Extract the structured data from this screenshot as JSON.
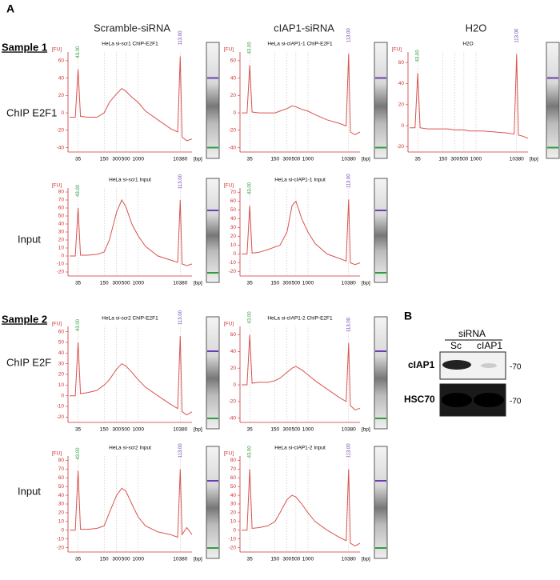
{
  "figure": {
    "panel_a": "A",
    "panel_b": "B",
    "column_headers": [
      "Scramble-siRNA",
      "cIAP1-siRNA",
      "H2O"
    ],
    "row_labels": [
      "Sample 1",
      "ChIP E2F1",
      "Input",
      "Sample 2",
      "ChIP E2F",
      "Input"
    ],
    "western": {
      "group": "siRNA",
      "lanes": [
        "Sc",
        "cIAP1"
      ],
      "proteins": [
        "cIAP1",
        "HSC70"
      ],
      "markers": [
        "-70",
        "-70"
      ]
    }
  },
  "chart_data": [
    {
      "type": "line",
      "title": "HeLa si-scr1 ChIP-E2F1",
      "ylabel": "[FU]",
      "xlabel": "[bp]",
      "color": "#d9534f",
      "xlog": true,
      "grid": true,
      "x": [
        22,
        30,
        35,
        40,
        60,
        100,
        150,
        200,
        300,
        400,
        500,
        700,
        1000,
        1500,
        3000,
        6000,
        9000,
        10380,
        11500,
        15000,
        20000
      ],
      "values": [
        -5,
        -5,
        50,
        -4,
        -5,
        -5,
        0,
        12,
        22,
        28,
        25,
        18,
        12,
        2,
        -8,
        -18,
        -22,
        65,
        -28,
        -32,
        -30
      ],
      "xlim": [
        20,
        20000
      ],
      "xticks": [
        35,
        150,
        300,
        500,
        1000,
        10380
      ],
      "ylim": [
        -45,
        70
      ],
      "yticks": [
        -40,
        -20,
        0,
        20,
        40,
        60
      ],
      "annotations": [
        {
          "x": 35,
          "text": "43.00",
          "color": "#2e9e3a"
        },
        {
          "x": 10380,
          "text": "113.00",
          "color": "#6a3fb5"
        }
      ]
    },
    {
      "type": "line",
      "title": "HeLa si-cIAP1-1 ChIP-E2F1",
      "ylabel": "[FU]",
      "xlabel": "[bp]",
      "color": "#d9534f",
      "xlog": true,
      "grid": true,
      "x": [
        22,
        30,
        35,
        40,
        60,
        100,
        150,
        200,
        300,
        400,
        500,
        700,
        1000,
        1500,
        3000,
        6000,
        9000,
        10380,
        11500,
        15000,
        20000
      ],
      "values": [
        0,
        0,
        55,
        1,
        0,
        0,
        0,
        2,
        5,
        8,
        7,
        4,
        2,
        -2,
        -8,
        -12,
        -15,
        68,
        -22,
        -25,
        -22
      ],
      "xlim": [
        20,
        20000
      ],
      "xticks": [
        35,
        150,
        300,
        500,
        1000,
        10380
      ],
      "ylim": [
        -45,
        70
      ],
      "yticks": [
        -40,
        -20,
        0,
        20,
        40,
        60
      ],
      "annotations": [
        {
          "x": 35,
          "text": "43.00",
          "color": "#2e9e3a"
        },
        {
          "x": 10380,
          "text": "113.00",
          "color": "#6a3fb5"
        }
      ]
    },
    {
      "type": "line",
      "title": "H2O",
      "ylabel": "[FU]",
      "xlabel": "[bp]",
      "color": "#d9534f",
      "xlog": true,
      "grid": true,
      "x": [
        22,
        30,
        35,
        40,
        60,
        100,
        150,
        200,
        300,
        400,
        500,
        700,
        1000,
        1500,
        3000,
        6000,
        9000,
        10380,
        11500,
        15000,
        20000
      ],
      "values": [
        -2,
        -2,
        50,
        -2,
        -3,
        -3,
        -3,
        -3,
        -4,
        -4,
        -4,
        -5,
        -5,
        -5,
        -6,
        -7,
        -8,
        68,
        -9,
        -10,
        -12
      ],
      "xlim": [
        20,
        20000
      ],
      "xticks": [
        35,
        150,
        300,
        500,
        1000,
        10380
      ],
      "ylim": [
        -25,
        70
      ],
      "yticks": [
        -20,
        0,
        20,
        40,
        60
      ],
      "annotations": [
        {
          "x": 35,
          "text": "43.00",
          "color": "#2e9e3a"
        },
        {
          "x": 10380,
          "text": "113.00",
          "color": "#6a3fb5"
        }
      ]
    },
    {
      "type": "line",
      "title": "HeLa si-scr1 Input",
      "ylabel": "[FU]",
      "xlabel": "[bp]",
      "color": "#d9534f",
      "xlog": true,
      "grid": true,
      "x": [
        22,
        30,
        35,
        40,
        60,
        100,
        150,
        200,
        300,
        400,
        500,
        700,
        1000,
        1500,
        3000,
        6000,
        9000,
        10380,
        11500,
        15000,
        20000
      ],
      "values": [
        0,
        0,
        60,
        1,
        1,
        2,
        5,
        20,
        55,
        70,
        62,
        40,
        25,
        12,
        0,
        -5,
        -8,
        70,
        -10,
        -12,
        -10
      ],
      "xlim": [
        20,
        20000
      ],
      "xticks": [
        35,
        150,
        300,
        500,
        1000,
        10380
      ],
      "ylim": [
        -25,
        85
      ],
      "yticks": [
        -20,
        -10,
        0,
        10,
        20,
        30,
        40,
        50,
        60,
        70,
        80
      ],
      "annotations": [
        {
          "x": 35,
          "text": "43.00",
          "color": "#2e9e3a"
        },
        {
          "x": 10380,
          "text": "113.00",
          "color": "#6a3fb5"
        }
      ]
    },
    {
      "type": "line",
      "title": "HeLa si-cIAP1-1 Input",
      "ylabel": "[FU]",
      "xlabel": "[bp]",
      "color": "#d9534f",
      "xlog": true,
      "grid": true,
      "x": [
        22,
        30,
        35,
        40,
        60,
        100,
        150,
        200,
        300,
        400,
        500,
        700,
        1000,
        1500,
        3000,
        6000,
        9000,
        10380,
        11500,
        15000,
        20000
      ],
      "values": [
        0,
        0,
        55,
        1,
        2,
        5,
        8,
        10,
        25,
        55,
        60,
        40,
        25,
        12,
        0,
        -5,
        -8,
        62,
        -10,
        -12,
        -10
      ],
      "xlim": [
        20,
        20000
      ],
      "xticks": [
        35,
        150,
        300,
        500,
        1000,
        10380
      ],
      "ylim": [
        -25,
        75
      ],
      "yticks": [
        -20,
        -10,
        0,
        10,
        20,
        30,
        40,
        50,
        60,
        70
      ],
      "annotations": [
        {
          "x": 35,
          "text": "43.00",
          "color": "#2e9e3a"
        },
        {
          "x": 10380,
          "text": "113.00",
          "color": "#6a3fb5"
        }
      ]
    },
    {
      "type": "line",
      "title": "HeLa si-scr2 ChIP-E2F1",
      "ylabel": "[FU]",
      "xlabel": "[bp]",
      "color": "#d9534f",
      "xlog": true,
      "grid": true,
      "x": [
        22,
        30,
        35,
        40,
        60,
        100,
        150,
        200,
        300,
        400,
        500,
        700,
        1000,
        1500,
        3000,
        6000,
        9000,
        10380,
        11500,
        15000,
        20000
      ],
      "values": [
        0,
        0,
        50,
        2,
        3,
        5,
        10,
        15,
        25,
        30,
        28,
        22,
        15,
        8,
        0,
        -8,
        -12,
        56,
        -15,
        -18,
        -15
      ],
      "xlim": [
        20,
        20000
      ],
      "xticks": [
        35,
        150,
        300,
        500,
        1000,
        10380
      ],
      "ylim": [
        -25,
        65
      ],
      "yticks": [
        -20,
        -10,
        0,
        10,
        20,
        30,
        40,
        50,
        60
      ],
      "annotations": [
        {
          "x": 35,
          "text": "43.00",
          "color": "#2e9e3a"
        },
        {
          "x": 10380,
          "text": "113.00",
          "color": "#6a3fb5"
        }
      ]
    },
    {
      "type": "line",
      "title": "HeLa si-cIAP1-2 ChIP-E2F1",
      "ylabel": "[FU]",
      "xlabel": "[bp]",
      "color": "#d9534f",
      "xlog": true,
      "grid": true,
      "x": [
        22,
        30,
        35,
        40,
        60,
        100,
        150,
        200,
        300,
        400,
        500,
        700,
        1000,
        1500,
        3000,
        6000,
        9000,
        10380,
        11500,
        15000,
        20000
      ],
      "values": [
        0,
        0,
        60,
        2,
        3,
        3,
        5,
        8,
        15,
        20,
        22,
        18,
        12,
        5,
        -5,
        -15,
        -20,
        50,
        -25,
        -30,
        -28
      ],
      "xlim": [
        20,
        20000
      ],
      "xticks": [
        35,
        150,
        300,
        500,
        1000,
        10380
      ],
      "ylim": [
        -45,
        70
      ],
      "yticks": [
        -40,
        -20,
        0,
        20,
        40,
        60
      ],
      "annotations": [
        {
          "x": 35,
          "text": "43.00",
          "color": "#2e9e3a"
        },
        {
          "x": 10380,
          "text": "113.00",
          "color": "#6a3fb5"
        }
      ]
    },
    {
      "type": "line",
      "title": "HeLa si-scr2 Input",
      "ylabel": "[FU]",
      "xlabel": "[bp]",
      "color": "#d9534f",
      "xlog": true,
      "grid": true,
      "x": [
        22,
        30,
        35,
        40,
        60,
        100,
        150,
        200,
        300,
        400,
        500,
        700,
        1000,
        1500,
        3000,
        6000,
        9000,
        10380,
        11500,
        15000,
        20000
      ],
      "values": [
        0,
        0,
        68,
        1,
        1,
        2,
        5,
        20,
        40,
        48,
        45,
        30,
        15,
        5,
        -2,
        -5,
        -8,
        70,
        -5,
        3,
        -5
      ],
      "xlim": [
        20,
        20000
      ],
      "xticks": [
        35,
        150,
        300,
        500,
        1000,
        10380
      ],
      "ylim": [
        -25,
        85
      ],
      "yticks": [
        -20,
        -10,
        0,
        10,
        20,
        30,
        40,
        50,
        60,
        70,
        80
      ],
      "annotations": [
        {
          "x": 35,
          "text": "43.00",
          "color": "#2e9e3a"
        },
        {
          "x": 10380,
          "text": "113.00",
          "color": "#6a3fb5"
        }
      ]
    },
    {
      "type": "line",
      "title": "HeLa si-cIAP1-2 Input",
      "ylabel": "[FU]",
      "xlabel": "[bp]",
      "color": "#d9534f",
      "xlog": true,
      "grid": true,
      "x": [
        22,
        30,
        35,
        40,
        60,
        100,
        150,
        200,
        300,
        400,
        500,
        700,
        1000,
        1500,
        3000,
        6000,
        9000,
        10380,
        11500,
        15000,
        20000
      ],
      "values": [
        0,
        0,
        70,
        2,
        3,
        5,
        10,
        20,
        35,
        40,
        38,
        30,
        20,
        10,
        0,
        -8,
        -12,
        70,
        -15,
        -18,
        -15
      ],
      "xlim": [
        20,
        20000
      ],
      "xticks": [
        35,
        150,
        300,
        500,
        1000,
        10380
      ],
      "ylim": [
        -25,
        85
      ],
      "yticks": [
        -20,
        -10,
        0,
        10,
        20,
        30,
        40,
        50,
        60,
        70,
        80
      ],
      "annotations": [
        {
          "x": 35,
          "text": "43.00",
          "color": "#2e9e3a"
        },
        {
          "x": 10380,
          "text": "113.00",
          "color": "#6a3fb5"
        }
      ]
    }
  ]
}
